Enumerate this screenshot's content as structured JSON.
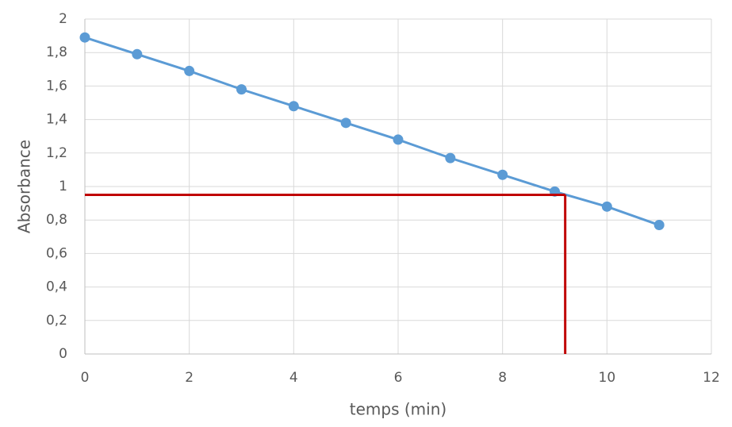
{
  "chart_data": {
    "type": "line",
    "x_label": "temps (min)",
    "y_label": "Absorbance",
    "x": [
      0,
      1,
      2,
      3,
      4,
      5,
      6,
      7,
      8,
      9,
      10,
      11
    ],
    "series": [
      {
        "color": "#5b9bd5",
        "values": [
          1.89,
          1.79,
          1.69,
          1.58,
          1.48,
          1.38,
          1.28,
          1.17,
          1.07,
          0.97,
          0.88,
          0.77
        ]
      }
    ],
    "xlim": [
      0,
      12
    ],
    "xticks": [
      0,
      2,
      4,
      6,
      8,
      10,
      12
    ],
    "ylim": [
      0,
      2
    ],
    "yticks": [
      0,
      {
        "value": 0.2,
        "label": "0,2"
      },
      {
        "value": 0.4,
        "label": "0,4"
      },
      {
        "value": 0.6,
        "label": "0,6"
      },
      {
        "value": 0.8,
        "label": "0,8"
      },
      1,
      {
        "value": 1.2,
        "label": "1,2"
      },
      {
        "value": 1.4,
        "label": "1,4"
      },
      {
        "value": 1.6,
        "label": "1,6"
      },
      {
        "value": 1.8,
        "label": "1,8"
      },
      2
    ],
    "grid": true,
    "reference": {
      "x": 9.2,
      "y": 0.95,
      "color": "#c00000"
    }
  }
}
